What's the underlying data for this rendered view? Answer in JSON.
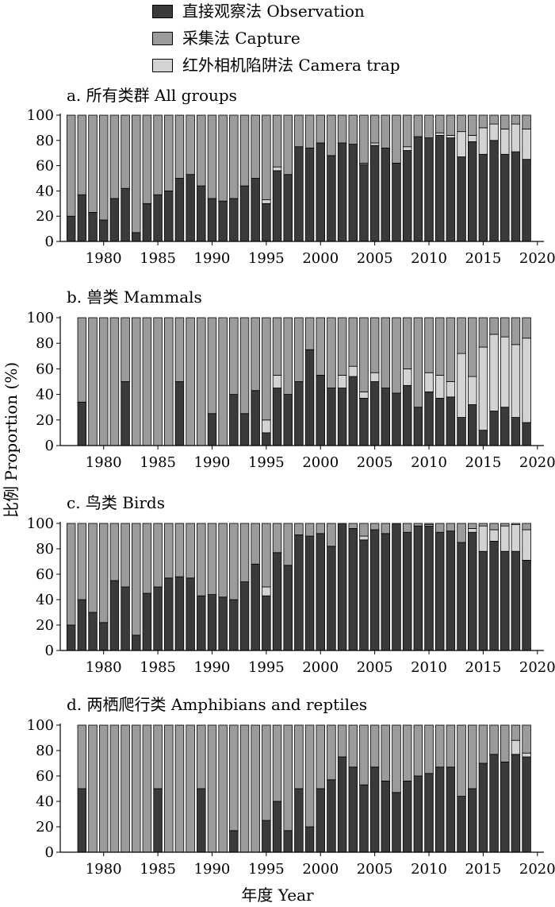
{
  "colors": {
    "observation": "#3a3a3a",
    "capture": "#9b9b9b",
    "camera": "#d3d3d3"
  },
  "legend": [
    {
      "key": "observation",
      "label": "直接观察法 Observation"
    },
    {
      "key": "capture",
      "label": "采集法 Capture"
    },
    {
      "key": "camera",
      "label": "红外相机陷阱法 Camera trap"
    }
  ],
  "axis": {
    "ylabel": "比例 Proportion (%)",
    "xlabel": "年度 Year"
  },
  "chart_data": [
    {
      "type": "bar",
      "stacked": true,
      "title": "a. 所有类群 All groups",
      "ylim": [
        0,
        100
      ],
      "yticks": [
        0,
        20,
        40,
        60,
        80,
        100
      ],
      "xticks": [
        1980,
        1985,
        1990,
        1995,
        2000,
        2005,
        2010,
        2015,
        2020
      ],
      "years": [
        1977,
        1978,
        1979,
        1980,
        1981,
        1982,
        1983,
        1984,
        1985,
        1986,
        1987,
        1988,
        1989,
        1990,
        1991,
        1992,
        1993,
        1994,
        1995,
        1996,
        1997,
        1998,
        1999,
        2000,
        2001,
        2002,
        2003,
        2004,
        2005,
        2006,
        2007,
        2008,
        2009,
        2010,
        2011,
        2012,
        2013,
        2014,
        2015,
        2016,
        2017,
        2018,
        2019
      ],
      "series": [
        {
          "name": "直接观察法 Observation",
          "key": "observation",
          "values": [
            20,
            37,
            23,
            17,
            34,
            42,
            7,
            30,
            37,
            40,
            50,
            53,
            44,
            34,
            32,
            34,
            44,
            50,
            30,
            56,
            53,
            75,
            74,
            78,
            68,
            78,
            77,
            61,
            76,
            74,
            62,
            72,
            83,
            82,
            84,
            82,
            67,
            79,
            69,
            80,
            69,
            71,
            65
          ]
        },
        {
          "name": "红外相机陷阱法 Camera trap",
          "key": "camera",
          "values": [
            0,
            0,
            0,
            0,
            0,
            0,
            0,
            0,
            0,
            0,
            0,
            0,
            0,
            0,
            0,
            0,
            0,
            0,
            3,
            3,
            0,
            0,
            0,
            0,
            0,
            0,
            0,
            1,
            2,
            0,
            0,
            3,
            0,
            0,
            2,
            2,
            20,
            5,
            21,
            13,
            20,
            22,
            24
          ]
        },
        {
          "name": "采集法 Capture",
          "key": "capture",
          "values": [
            80,
            63,
            77,
            83,
            66,
            58,
            93,
            70,
            63,
            60,
            50,
            47,
            56,
            66,
            68,
            66,
            56,
            50,
            67,
            41,
            47,
            25,
            26,
            22,
            32,
            22,
            23,
            38,
            22,
            26,
            38,
            25,
            17,
            18,
            14,
            16,
            13,
            16,
            10,
            7,
            11,
            7,
            11
          ]
        }
      ]
    },
    {
      "type": "bar",
      "stacked": true,
      "title": "b. 兽类 Mammals",
      "ylim": [
        0,
        100
      ],
      "yticks": [
        0,
        20,
        40,
        60,
        80,
        100
      ],
      "xticks": [
        1980,
        1985,
        1990,
        1995,
        2000,
        2005,
        2010,
        2015,
        2020
      ],
      "years": [
        1978,
        1979,
        1980,
        1981,
        1982,
        1983,
        1984,
        1985,
        1986,
        1987,
        1988,
        1989,
        1990,
        1991,
        1992,
        1993,
        1994,
        1995,
        1996,
        1997,
        1998,
        1999,
        2000,
        2001,
        2002,
        2003,
        2004,
        2005,
        2006,
        2007,
        2008,
        2009,
        2010,
        2011,
        2012,
        2013,
        2014,
        2015,
        2016,
        2017,
        2018,
        2019
      ],
      "series": [
        {
          "name": "直接观察法 Observation",
          "key": "observation",
          "values": [
            34,
            0,
            0,
            0,
            50,
            0,
            0,
            0,
            0,
            50,
            0,
            0,
            25,
            0,
            40,
            25,
            43,
            10,
            45,
            40,
            50,
            75,
            55,
            45,
            45,
            54,
            37,
            50,
            45,
            41,
            47,
            30,
            42,
            37,
            38,
            22,
            32,
            12,
            27,
            30,
            22,
            18
          ]
        },
        {
          "name": "红外相机陷阱法 Camera trap",
          "key": "camera",
          "values": [
            0,
            0,
            0,
            0,
            0,
            0,
            0,
            0,
            0,
            0,
            0,
            0,
            0,
            0,
            0,
            0,
            0,
            10,
            10,
            0,
            0,
            0,
            0,
            0,
            10,
            8,
            5,
            7,
            0,
            0,
            13,
            0,
            15,
            18,
            12,
            50,
            22,
            65,
            60,
            55,
            57,
            66
          ]
        },
        {
          "name": "采集法 Capture",
          "key": "capture",
          "values": [
            66,
            100,
            100,
            100,
            50,
            100,
            100,
            100,
            100,
            50,
            100,
            100,
            75,
            100,
            60,
            75,
            57,
            80,
            45,
            60,
            50,
            25,
            45,
            55,
            45,
            38,
            58,
            43,
            55,
            59,
            40,
            70,
            43,
            45,
            50,
            28,
            46,
            23,
            13,
            15,
            21,
            16
          ]
        }
      ]
    },
    {
      "type": "bar",
      "stacked": true,
      "title": "c. 鸟类 Birds",
      "ylim": [
        0,
        100
      ],
      "yticks": [
        0,
        20,
        40,
        60,
        80,
        100
      ],
      "xticks": [
        1980,
        1985,
        1990,
        1995,
        2000,
        2005,
        2010,
        2015,
        2020
      ],
      "years": [
        1977,
        1978,
        1979,
        1980,
        1981,
        1982,
        1983,
        1984,
        1985,
        1986,
        1987,
        1988,
        1989,
        1990,
        1991,
        1992,
        1993,
        1994,
        1995,
        1996,
        1997,
        1998,
        1999,
        2000,
        2001,
        2002,
        2003,
        2004,
        2005,
        2006,
        2007,
        2008,
        2009,
        2010,
        2011,
        2012,
        2013,
        2014,
        2015,
        2016,
        2017,
        2018,
        2019
      ],
      "series": [
        {
          "name": "直接观察法 Observation",
          "key": "observation",
          "values": [
            20,
            40,
            30,
            22,
            55,
            50,
            12,
            45,
            50,
            57,
            58,
            57,
            43,
            44,
            42,
            40,
            54,
            68,
            43,
            77,
            67,
            91,
            90,
            92,
            82,
            100,
            96,
            87,
            95,
            92,
            100,
            93,
            98,
            98,
            93,
            94,
            85,
            93,
            78,
            86,
            78,
            78,
            71
          ]
        },
        {
          "name": "红外相机陷阱法 Camera trap",
          "key": "camera",
          "values": [
            0,
            0,
            0,
            0,
            0,
            0,
            0,
            0,
            0,
            0,
            0,
            0,
            0,
            0,
            0,
            0,
            0,
            0,
            7,
            0,
            0,
            0,
            0,
            0,
            0,
            0,
            0,
            3,
            0,
            0,
            0,
            0,
            0,
            1,
            0,
            0,
            0,
            3,
            20,
            9,
            20,
            21,
            24
          ]
        },
        {
          "name": "采集法 Capture",
          "key": "capture",
          "values": [
            80,
            60,
            70,
            78,
            45,
            50,
            88,
            55,
            50,
            43,
            42,
            43,
            57,
            56,
            58,
            60,
            46,
            32,
            50,
            23,
            33,
            9,
            10,
            8,
            18,
            0,
            4,
            10,
            5,
            8,
            0,
            7,
            2,
            1,
            7,
            6,
            15,
            4,
            2,
            5,
            2,
            1,
            5
          ]
        }
      ]
    },
    {
      "type": "bar",
      "stacked": true,
      "title": "d. 两栖爬行类 Amphibians and reptiles",
      "ylim": [
        0,
        100
      ],
      "yticks": [
        0,
        20,
        40,
        60,
        80,
        100
      ],
      "xticks": [
        1980,
        1985,
        1990,
        1995,
        2000,
        2005,
        2010,
        2015,
        2020
      ],
      "years": [
        1978,
        1979,
        1980,
        1981,
        1982,
        1983,
        1984,
        1985,
        1986,
        1987,
        1988,
        1989,
        1990,
        1991,
        1992,
        1993,
        1994,
        1995,
        1996,
        1997,
        1998,
        1999,
        2000,
        2001,
        2002,
        2003,
        2004,
        2005,
        2006,
        2007,
        2008,
        2009,
        2010,
        2011,
        2012,
        2013,
        2014,
        2015,
        2016,
        2017,
        2018,
        2019
      ],
      "series": [
        {
          "name": "直接观察法 Observation",
          "key": "observation",
          "values": [
            50,
            0,
            0,
            0,
            0,
            0,
            0,
            50,
            0,
            0,
            0,
            50,
            0,
            0,
            17,
            0,
            0,
            25,
            40,
            17,
            50,
            20,
            50,
            57,
            75,
            67,
            53,
            67,
            56,
            47,
            56,
            60,
            62,
            67,
            67,
            44,
            50,
            70,
            77,
            71,
            77,
            75
          ]
        },
        {
          "name": "红外相机陷阱法 Camera trap",
          "key": "camera",
          "values": [
            0,
            0,
            0,
            0,
            0,
            0,
            0,
            0,
            0,
            0,
            0,
            0,
            0,
            0,
            0,
            0,
            0,
            0,
            0,
            0,
            0,
            0,
            0,
            0,
            0,
            0,
            0,
            0,
            0,
            0,
            0,
            0,
            0,
            0,
            0,
            0,
            0,
            0,
            0,
            0,
            11,
            3
          ]
        },
        {
          "name": "采集法 Capture",
          "key": "capture",
          "values": [
            50,
            100,
            100,
            100,
            100,
            100,
            100,
            50,
            100,
            100,
            100,
            50,
            100,
            100,
            83,
            100,
            100,
            75,
            60,
            83,
            50,
            80,
            50,
            43,
            25,
            33,
            47,
            33,
            44,
            53,
            44,
            40,
            38,
            33,
            33,
            56,
            50,
            30,
            23,
            29,
            12,
            22
          ]
        }
      ]
    }
  ]
}
